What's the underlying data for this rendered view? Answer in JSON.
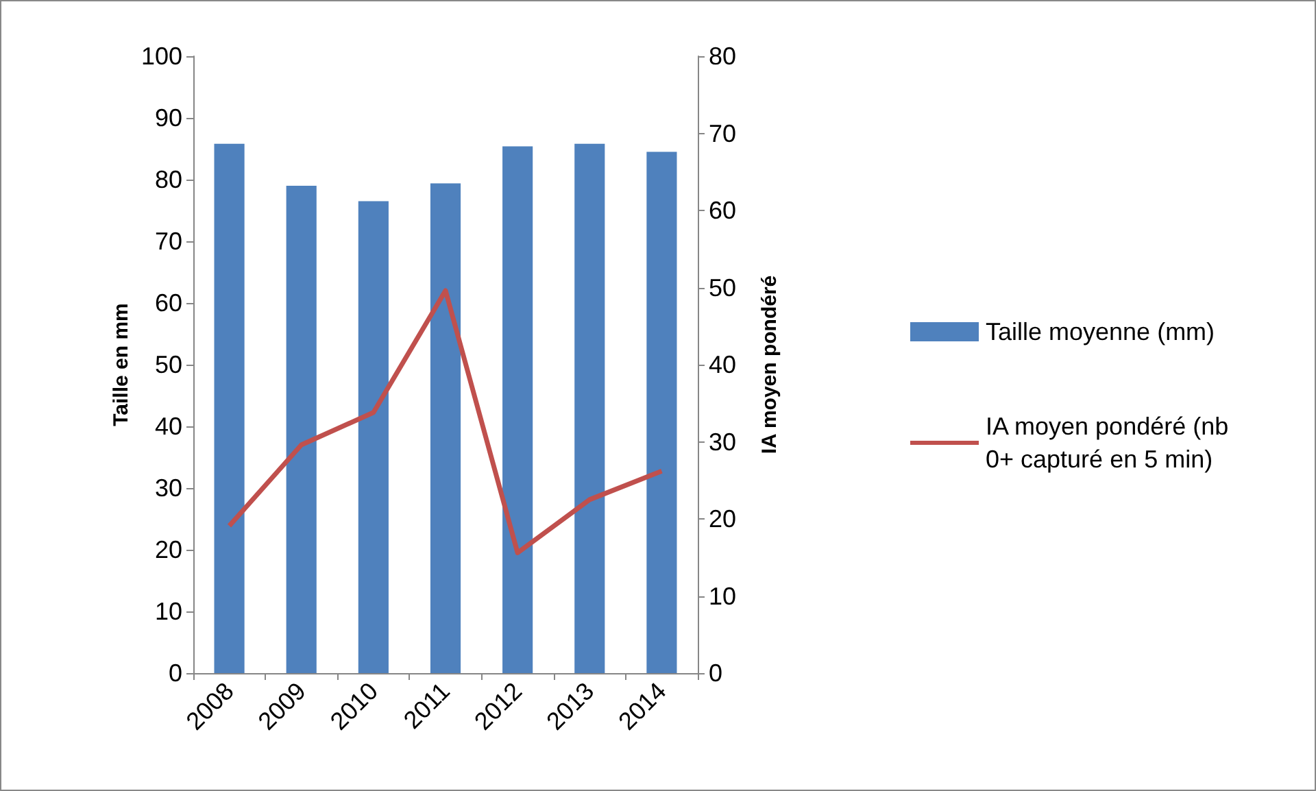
{
  "chart_data": {
    "type": "bar",
    "categories": [
      "2008",
      "2009",
      "2010",
      "2011",
      "2012",
      "2013",
      "2014"
    ],
    "ylabel": "Taille en mm",
    "y2label": "IA moyen pondéré",
    "ylim": [
      0,
      100
    ],
    "yticks": [
      0,
      10,
      20,
      30,
      40,
      50,
      60,
      70,
      80,
      90,
      100
    ],
    "y2lim": [
      0,
      80
    ],
    "y2ticks": [
      0,
      10,
      20,
      30,
      40,
      50,
      60,
      70,
      80
    ],
    "series": [
      {
        "name": "Taille moyenne (mm)",
        "color": "#4f81bd",
        "values": [
          85.8,
          79.0,
          76.5,
          79.4,
          85.4,
          85.8,
          84.5
        ]
      },
      {
        "name": "IA moyen pondéré (nb 0+ capturé en 5 min)",
        "type": "line",
        "axis": "y2",
        "color": "#c0504d",
        "values": [
          19.1,
          29.6,
          33.8,
          49.6,
          15.6,
          22.5,
          26.2
        ]
      }
    ],
    "legend": "right",
    "grid": false,
    "marker": "none",
    "line_style": "solid"
  }
}
